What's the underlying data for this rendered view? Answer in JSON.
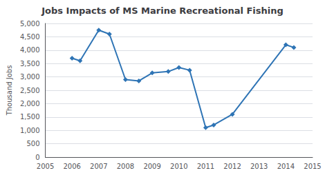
{
  "chart_data": {
    "type": "line",
    "title": "Jobs Impacts of MS Marine Recreational Fishing",
    "ylabel": "Thousand Jobs",
    "x": [
      2006,
      2006.3,
      2007,
      2007.4,
      2008,
      2008.5,
      2009,
      2009.6,
      2010,
      2010.4,
      2011,
      2011.3,
      2012,
      2014,
      2014.3
    ],
    "values": [
      3700,
      3600,
      4750,
      4600,
      2900,
      2850,
      3150,
      3200,
      3350,
      3250,
      1100,
      1200,
      1600,
      4200,
      4100
    ],
    "color": "#2E74B5",
    "marker": "diamond",
    "xlim": [
      2005,
      2015
    ],
    "xticks": [
      2005,
      2006,
      2007,
      2008,
      2009,
      2010,
      2011,
      2012,
      2013,
      2014,
      2015
    ],
    "ylim": [
      0,
      5000
    ],
    "yticks": [
      0,
      500,
      {
        "value": 1000,
        "label": "1,000"
      },
      {
        "value": 1500,
        "label": "1,500"
      },
      {
        "value": 2000,
        "label": "2,000"
      },
      {
        "value": 2500,
        "label": "2,500"
      },
      {
        "value": 3000,
        "label": "3,000"
      },
      {
        "value": 3500,
        "label": "3,500"
      },
      {
        "value": 4000,
        "label": "4,000"
      },
      {
        "value": 4500,
        "label": "4,500"
      },
      {
        "value": 5000,
        "label": "5,000"
      }
    ],
    "grid": "y"
  }
}
